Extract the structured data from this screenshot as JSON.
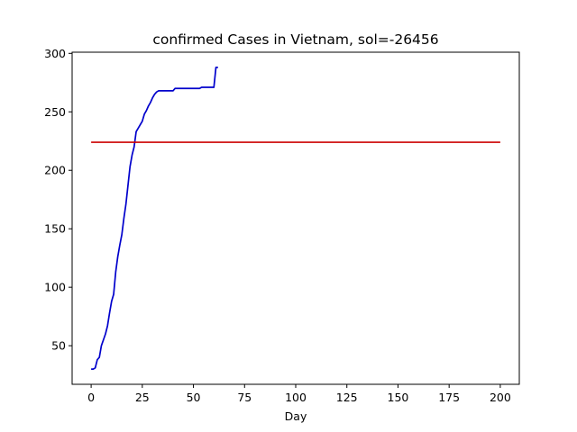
{
  "chart_data": {
    "type": "line",
    "title": "confirmed Cases in Vietnam, sol=-26456",
    "xlabel": "Day",
    "ylabel": "",
    "xlim": [
      -9.3,
      209.3
    ],
    "ylim": [
      17,
      301
    ],
    "xticks": [
      0,
      25,
      50,
      75,
      100,
      125,
      150,
      175,
      200
    ],
    "yticks": [
      50,
      100,
      150,
      200,
      250,
      300
    ],
    "grid": false,
    "series": [
      {
        "color": "#0000cc",
        "x": [
          0,
          1,
          2,
          3,
          4,
          5,
          6,
          7,
          8,
          9,
          10,
          11,
          12,
          13,
          14,
          15,
          16,
          17,
          18,
          19,
          20,
          21,
          22,
          23,
          24,
          25,
          26,
          27,
          28,
          29,
          30,
          31,
          32,
          33,
          34,
          35,
          36,
          37,
          38,
          39,
          40,
          41,
          42,
          43,
          44,
          45,
          46,
          47,
          48,
          49,
          50,
          51,
          52,
          53,
          54,
          55,
          56,
          57,
          58,
          59,
          60,
          61,
          62
        ],
        "y": [
          30,
          30,
          31,
          38,
          40,
          50,
          55,
          60,
          67,
          78,
          88,
          94,
          113,
          126,
          136,
          145,
          159,
          171,
          187,
          203,
          213,
          220,
          233,
          236,
          239,
          242,
          248,
          251,
          255,
          258,
          262,
          265,
          267,
          268,
          268,
          268,
          268,
          268,
          268,
          268,
          268,
          270,
          270,
          270,
          270,
          270,
          270,
          270,
          270,
          270,
          270,
          270,
          270,
          270,
          271,
          271,
          271,
          271,
          271,
          271,
          271,
          288,
          288
        ]
      },
      {
        "color": "#cc0000",
        "x": [
          0,
          200
        ],
        "y": [
          224,
          224
        ]
      }
    ]
  }
}
